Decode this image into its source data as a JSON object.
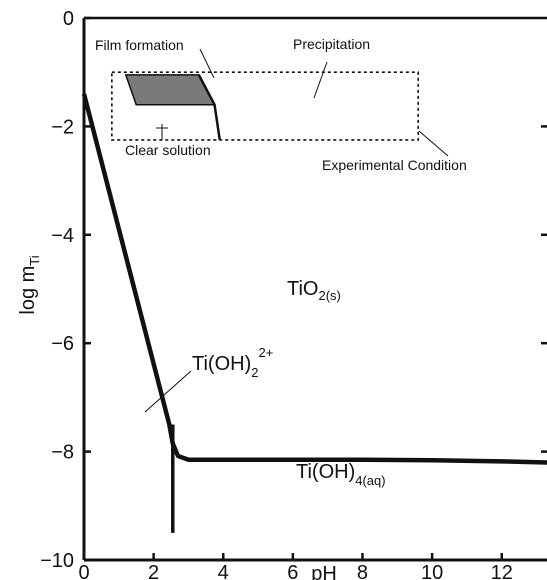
{
  "chart_data": {
    "type": "line",
    "title": "",
    "xlabel": "pH",
    "ylabel_main": "log m",
    "ylabel_sub": "Ti",
    "xlim": [
      0,
      13.3
    ],
    "ylim": [
      -10,
      0
    ],
    "xticks": [
      0,
      2,
      4,
      6,
      8,
      10,
      12
    ],
    "xtick_labels": [
      "0",
      "2",
      "4",
      "6",
      "8",
      "10",
      "12"
    ],
    "yticks": [
      0,
      -2,
      -4,
      -6,
      -8,
      -10
    ],
    "ytick_labels": [
      "0",
      "−2",
      "−4",
      "−6",
      "−8",
      "−10"
    ],
    "grid": false,
    "series": [
      {
        "x": [
          0,
          2.45,
          2.55,
          2.7,
          3.0,
          4.0,
          6.0,
          8.0,
          10.0,
          12.0,
          13.3
        ],
        "y": [
          -1.4,
          -7.5,
          -7.85,
          -8.08,
          -8.15,
          -8.15,
          -8.15,
          -8.15,
          -8.16,
          -8.18,
          -8.2
        ],
        "color": "#111111"
      }
    ],
    "vertical_segment": {
      "x": 2.55,
      "y": [
        -7.5,
        -9.5
      ]
    },
    "experimental_box": {
      "x": [
        0.8,
        9.6
      ],
      "y": [
        -1.0,
        -2.25
      ]
    },
    "film_region": {
      "x": [
        1.2,
        3.3,
        3.75,
        1.5
      ],
      "y": [
        -1.05,
        -1.05,
        -1.6,
        -1.6
      ]
    },
    "film_boundary_line": {
      "x": [
        3.3,
        3.75,
        3.9
      ],
      "y": [
        -1.05,
        -1.6,
        -2.25
      ]
    },
    "labels": {
      "film": "Film formation",
      "precipitation": "Precipitation",
      "clear": "Clear solution",
      "experimental": "Experimental Condition",
      "tio2_main": "TiO",
      "tio2_sub": "2(s)",
      "tioh2_main": "Ti(OH)",
      "tioh2_sub": "2",
      "tioh2_sup": "2+",
      "tioh4_main": "Ti(OH)",
      "tioh4_sub": "4(aq)"
    }
  }
}
